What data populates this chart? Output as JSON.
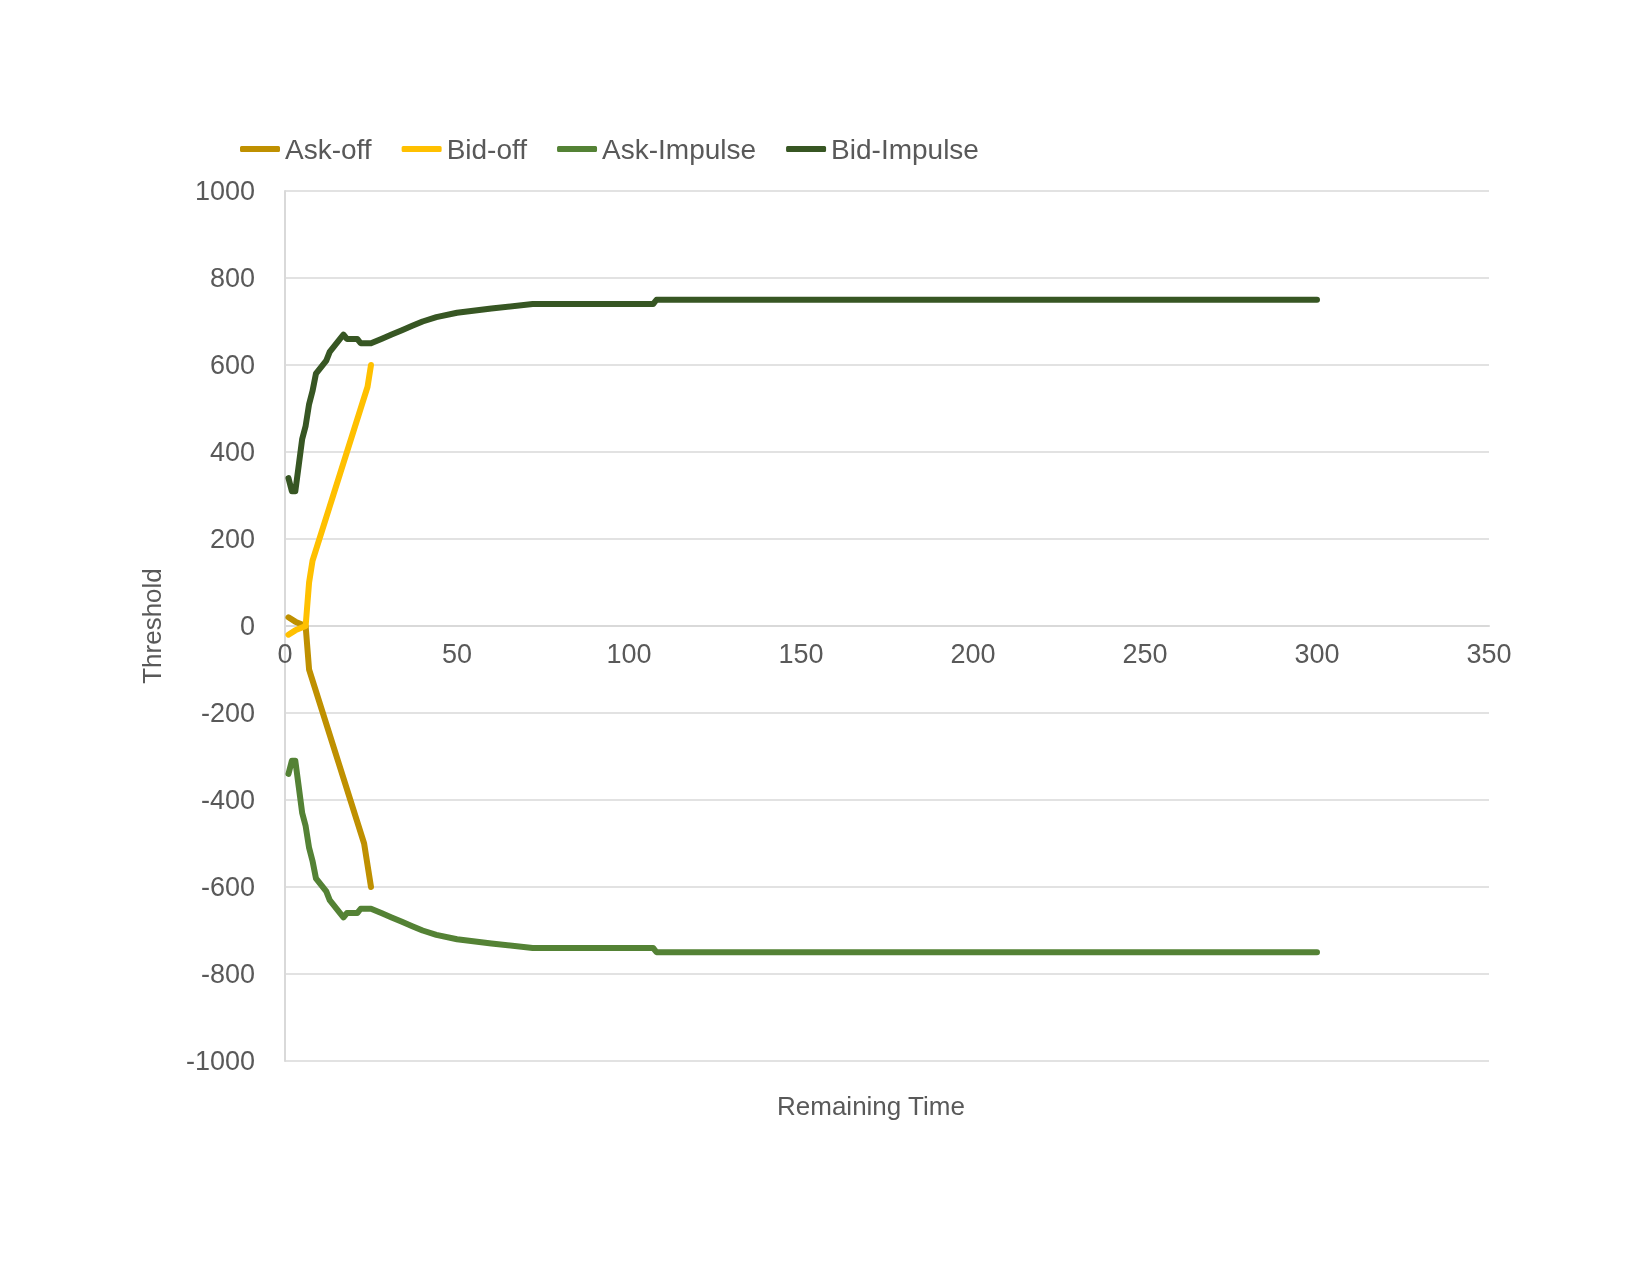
{
  "chart_data": {
    "type": "line",
    "xlabel": "Remaining Time",
    "ylabel": "Threshold",
    "xlim": [
      0,
      350
    ],
    "xticks": [
      0,
      50,
      100,
      150,
      200,
      250,
      300,
      350
    ],
    "ylim": [
      -1000,
      1000
    ],
    "yticks": [
      -1000,
      -800,
      -600,
      -400,
      -200,
      0,
      200,
      400,
      600,
      800,
      1000
    ],
    "grid": "y",
    "legend": "top left",
    "marker": "none",
    "line_style": "solid",
    "series": [
      {
        "name": "Ask-off",
        "color": "#bf9000",
        "x": [
          1,
          3,
          6,
          7,
          9,
          11,
          13,
          15,
          17,
          19,
          21,
          23,
          24,
          25
        ],
        "values": [
          20,
          10,
          0,
          -100,
          -150,
          -200,
          -250,
          -300,
          -350,
          -400,
          -450,
          -500,
          -550,
          -600
        ]
      },
      {
        "name": "Bid-off",
        "color": "#ffc000",
        "x": [
          1,
          3,
          6,
          7,
          8,
          10,
          12,
          14,
          16,
          18,
          20,
          22,
          24,
          25
        ],
        "values": [
          -20,
          -10,
          0,
          100,
          150,
          200,
          250,
          300,
          350,
          400,
          450,
          500,
          550,
          600
        ]
      },
      {
        "name": "Ask-Impulse",
        "color": "#548235",
        "x": [
          1,
          2,
          3,
          4,
          5,
          6,
          7,
          8,
          9,
          12,
          13,
          16,
          17,
          18,
          21,
          22,
          25,
          28,
          31,
          34,
          37,
          40,
          44,
          50,
          60,
          72,
          107,
          108,
          300
        ],
        "values": [
          -340,
          -310,
          -310,
          -370,
          -430,
          -460,
          -510,
          -540,
          -580,
          -610,
          -630,
          -660,
          -670,
          -660,
          -660,
          -650,
          -650,
          -660,
          -670,
          -680,
          -690,
          -700,
          -710,
          -720,
          -730,
          -740,
          -740,
          -750,
          -750
        ]
      },
      {
        "name": "Bid-Impulse",
        "color": "#375623",
        "x": [
          1,
          2,
          3,
          4,
          5,
          6,
          7,
          8,
          9,
          12,
          13,
          16,
          17,
          18,
          21,
          22,
          25,
          28,
          31,
          34,
          37,
          40,
          44,
          50,
          60,
          72,
          107,
          108,
          300
        ],
        "values": [
          340,
          310,
          310,
          370,
          430,
          460,
          510,
          540,
          580,
          610,
          630,
          660,
          670,
          660,
          660,
          650,
          650,
          660,
          670,
          680,
          690,
          700,
          710,
          720,
          730,
          740,
          740,
          750,
          750
        ]
      }
    ]
  }
}
